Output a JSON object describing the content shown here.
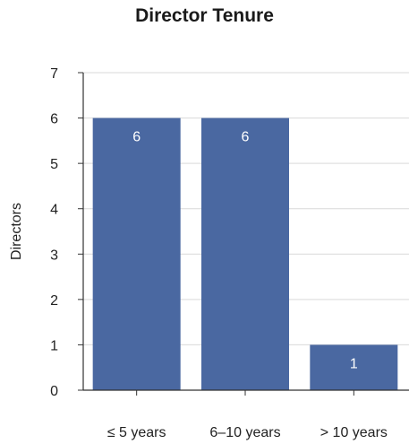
{
  "chart_data": {
    "type": "bar",
    "title": "Director Tenure",
    "xlabel": "",
    "ylabel": "Directors",
    "categories": [
      "≤ 5 years",
      "6–10 years",
      "> 10 years"
    ],
    "values": [
      6,
      6,
      1
    ],
    "data_labels": [
      "6",
      "6",
      "1"
    ],
    "ylim": [
      0,
      7
    ],
    "yticks": [
      0,
      1,
      2,
      3,
      4,
      5,
      6,
      7
    ],
    "grid": true,
    "legend": "none",
    "colors": {
      "bar": "#4a68a1",
      "grid": "#d9d9d9",
      "axis": "#333333",
      "label": "#ffffff",
      "text": "#222222"
    }
  }
}
